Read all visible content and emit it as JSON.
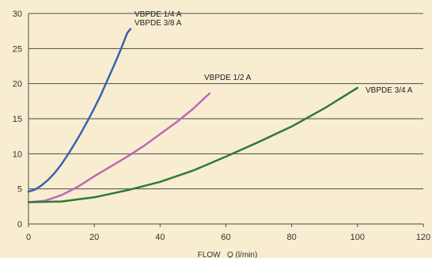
{
  "chart_data": {
    "type": "line",
    "title": "",
    "xlabel": "FLOW   Q (l/min)",
    "ylabel": "",
    "xlim": [
      0,
      120
    ],
    "ylim": [
      0,
      30
    ],
    "xticks": [
      0,
      20,
      40,
      60,
      80,
      100,
      120
    ],
    "yticks": [
      0,
      5,
      10,
      15,
      20,
      25,
      30
    ],
    "grid": "horizontal",
    "background": "#f8edd0",
    "series": [
      {
        "name": "VBPDE 1/4 A\nVBPDE 3/8 A",
        "color": "#3a62b0",
        "points": [
          [
            0,
            4.6
          ],
          [
            2,
            4.9
          ],
          [
            4,
            5.5
          ],
          [
            6,
            6.3
          ],
          [
            8,
            7.3
          ],
          [
            10,
            8.5
          ],
          [
            12,
            9.9
          ],
          [
            14,
            11.4
          ],
          [
            16,
            13.0
          ],
          [
            18,
            14.7
          ],
          [
            20,
            16.5
          ],
          [
            22,
            18.4
          ],
          [
            24,
            20.5
          ],
          [
            26,
            22.6
          ],
          [
            28,
            24.8
          ],
          [
            30,
            27.2
          ],
          [
            31,
            27.8
          ]
        ]
      },
      {
        "name": "VBPDE 1/2 A",
        "color": "#c066b8",
        "points": [
          [
            0,
            3.1
          ],
          [
            5,
            3.3
          ],
          [
            10,
            4.1
          ],
          [
            15,
            5.3
          ],
          [
            20,
            6.8
          ],
          [
            25,
            8.2
          ],
          [
            30,
            9.6
          ],
          [
            35,
            11.1
          ],
          [
            40,
            12.8
          ],
          [
            45,
            14.5
          ],
          [
            50,
            16.4
          ],
          [
            55,
            18.6
          ]
        ]
      },
      {
        "name": "VBPDE 3/4 A",
        "color": "#2d7a3a",
        "points": [
          [
            0,
            3.1
          ],
          [
            10,
            3.2
          ],
          [
            20,
            3.8
          ],
          [
            30,
            4.8
          ],
          [
            40,
            6.0
          ],
          [
            50,
            7.6
          ],
          [
            60,
            9.6
          ],
          [
            70,
            11.7
          ],
          [
            80,
            13.9
          ],
          [
            90,
            16.5
          ],
          [
            100,
            19.4
          ]
        ]
      }
    ]
  }
}
